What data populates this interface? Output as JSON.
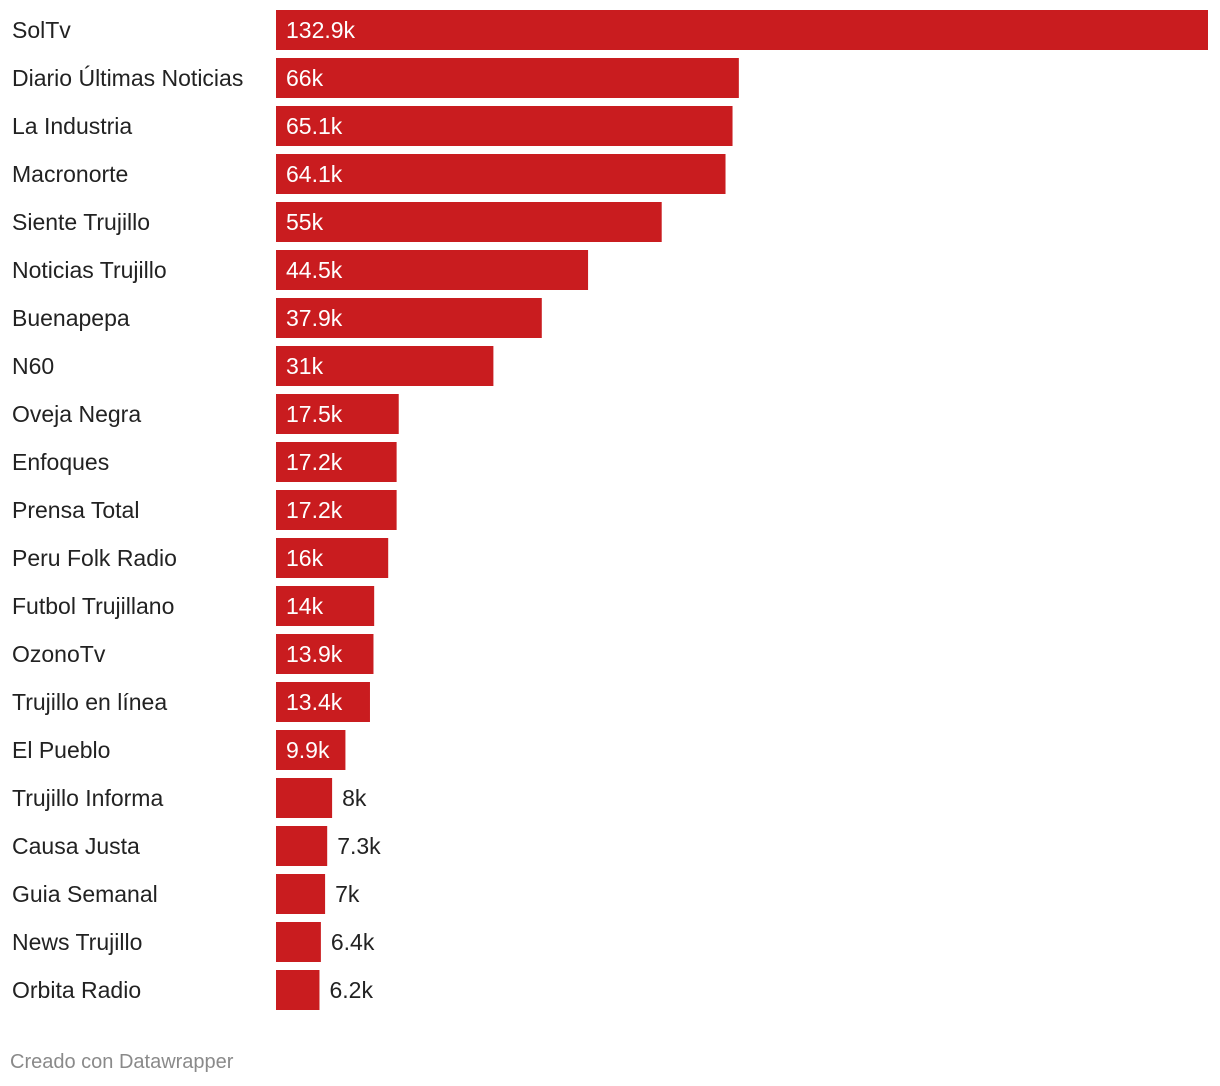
{
  "colors": {
    "bar": "#c91c1f",
    "label_inside": "#ffffff",
    "label_outside": "#222222"
  },
  "chart_data": {
    "type": "bar",
    "orientation": "horizontal",
    "categories": [
      "SolTv",
      "Diario Últimas Noticias",
      "La Industria",
      "Macronorte",
      "Siente Trujillo",
      "Noticias Trujillo",
      "Buenapepa",
      "N60",
      "Oveja Negra",
      "Enfoques",
      "Prensa Total",
      "Peru Folk Radio",
      "Futbol Trujillano",
      "OzonoTv",
      "Trujillo en línea",
      "El Pueblo",
      "Trujillo Informa",
      "Causa Justa",
      "Guia Semanal",
      "News Trujillo",
      "Orbita Radio"
    ],
    "values": [
      132900,
      66000,
      65100,
      64100,
      55000,
      44500,
      37900,
      31000,
      17500,
      17200,
      17200,
      16000,
      14000,
      13900,
      13400,
      9900,
      8000,
      7300,
      7000,
      6400,
      6200
    ],
    "value_labels": [
      "132.9k",
      "66k",
      "65.1k",
      "64.1k",
      "55k",
      "44.5k",
      "37.9k",
      "31k",
      "17.5k",
      "17.2k",
      "17.2k",
      "16k",
      "14k",
      "13.9k",
      "13.4k",
      "9.9k",
      "8k",
      "7.3k",
      "7k",
      "6.4k",
      "6.2k"
    ],
    "title": "",
    "xlabel": "",
    "ylabel": "",
    "xlim": [
      0,
      132900
    ],
    "grid": false,
    "legend": "none"
  },
  "footer": {
    "credit": "Creado con Datawrapper"
  }
}
